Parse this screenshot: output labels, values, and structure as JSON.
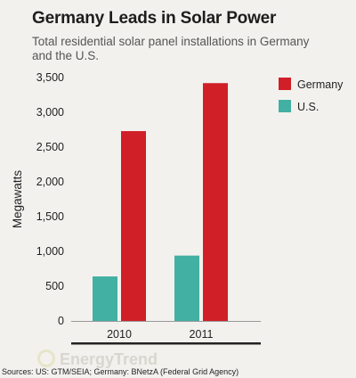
{
  "title": "Germany Leads in Solar Power",
  "subtitle": "Total residential solar panel installations in Germany and the U.S.",
  "source": "Sources: US: GTM/SEIA; Germany: BNetzA (Federal Grid Agency)",
  "watermark": "EnergyTrend",
  "colors": {
    "germany": "#d01f27",
    "us": "#42b0a3"
  },
  "chart_data": {
    "type": "bar",
    "categories": [
      "2010",
      "2011"
    ],
    "series": [
      {
        "name": "U.S.",
        "color": "#42b0a3",
        "values": [
          640,
          940
        ]
      },
      {
        "name": "Germany",
        "color": "#d01f27",
        "values": [
          2730,
          3420
        ]
      }
    ],
    "legend_order": [
      "Germany",
      "U.S."
    ],
    "legend_position": "right",
    "ylabel": "Megawatts",
    "ylim": [
      0,
      3500
    ],
    "yticks": [
      "0",
      "500",
      "1,000",
      "1,500",
      "2,000",
      "2,500",
      "3,000",
      "3,500"
    ],
    "grid": false
  }
}
